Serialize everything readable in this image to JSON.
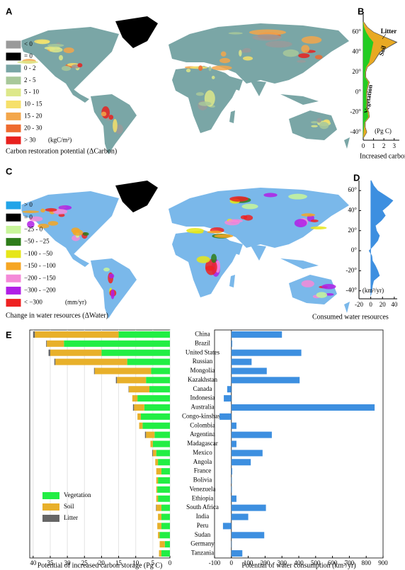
{
  "maps": [
    {
      "label": "A",
      "unit": "(kgC/m²)",
      "caption": "Carbon restoration potential (ΔCarbon)",
      "legend": [
        {
          "label": "< 0",
          "color": "#9a9a9a"
        },
        {
          "label": "= 0",
          "color": "#000000"
        },
        {
          "label": "0 - 2",
          "color": "#7aa6a6"
        },
        {
          "label": "2 - 5",
          "color": "#a8c89a"
        },
        {
          "label": "5 - 10",
          "color": "#dde88a"
        },
        {
          "label": "10 - 15",
          "color": "#f6e06a"
        },
        {
          "label": "15 - 20",
          "color": "#f3a64a"
        },
        {
          "label": "20 - 30",
          "color": "#ee6a2e"
        },
        {
          "label": "> 30",
          "color": "#e8211e"
        }
      ]
    },
    {
      "label": "C",
      "unit": "(mm/yr)",
      "caption": "Change in water resources (ΔWater)",
      "legend": [
        {
          "label": "> 0",
          "color": "#22a4e8"
        },
        {
          "label": "= 0",
          "color": "#000000"
        },
        {
          "label": "−25 - 0",
          "color": "#c8f59a"
        },
        {
          "label": "−50 - −25",
          "color": "#2e7d1a"
        },
        {
          "label": "−100 - −50",
          "color": "#e6e619"
        },
        {
          "label": "−150 - −100",
          "color": "#f6a623"
        },
        {
          "label": "−200 - −150",
          "color": "#f48ad8"
        },
        {
          "label": "−300 - −200",
          "color": "#b01fe6"
        },
        {
          "label": "< −300",
          "color": "#ee2222"
        }
      ]
    }
  ],
  "chart_data": [
    {
      "type": "area",
      "label": "B",
      "orientation": "horizontal",
      "stacked": true,
      "caption": "Increased carbon storage",
      "ylabel": "(Pg C)",
      "x": [
        -45,
        -40,
        -35,
        -30,
        -25,
        -20,
        -15,
        -10,
        -5,
        0,
        5,
        10,
        15,
        20,
        25,
        30,
        35,
        40,
        45,
        50,
        55,
        60,
        65,
        70
      ],
      "xlim": [
        -48,
        78
      ],
      "xticks": [
        {
          "value": -40,
          "label": "-40°"
        },
        {
          "value": -20,
          "label": "-20°"
        },
        {
          "value": 0,
          "label": "0°"
        },
        {
          "value": 20,
          "label": "20°"
        },
        {
          "value": 40,
          "label": "40°"
        },
        {
          "value": 60,
          "label": "60°"
        }
      ],
      "ylim": [
        0,
        3.5
      ],
      "yticks": [
        0,
        1,
        2,
        3
      ],
      "series": [
        {
          "name": "Vegetation",
          "color": "#22cc22",
          "values": [
            0.02,
            0.05,
            0.1,
            0.15,
            0.5,
            0.45,
            0.3,
            0.35,
            0.3,
            0.3,
            0.4,
            0.5,
            0.2,
            0.2,
            0.3,
            0.6,
            0.7,
            0.8,
            0.9,
            1.0,
            0.6,
            0.3,
            0.1,
            0.02
          ]
        },
        {
          "name": "Soil",
          "color": "#e8a923",
          "values": [
            0.05,
            0.3,
            0.1,
            0.05,
            0.1,
            0.1,
            0.05,
            0.05,
            0.05,
            0.05,
            0.05,
            0.1,
            0.05,
            0.05,
            0.1,
            0.4,
            0.6,
            0.8,
            1.5,
            2.2,
            1.5,
            0.7,
            0.3,
            0.05
          ]
        },
        {
          "name": "Litter",
          "color": "#555555",
          "values": [
            0,
            0.01,
            0,
            0,
            0,
            0,
            0,
            0,
            0,
            0,
            0,
            0,
            0,
            0,
            0,
            0.02,
            0.03,
            0.05,
            0.05,
            0.1,
            0.05,
            0.03,
            0.01,
            0
          ]
        }
      ]
    },
    {
      "type": "area",
      "label": "D",
      "orientation": "horizontal",
      "caption": "Consumed water resources",
      "ylabel": "(km³/yr)",
      "x": [
        -45,
        -40,
        -35,
        -30,
        -25,
        -20,
        -15,
        -10,
        -5,
        0,
        5,
        10,
        15,
        20,
        25,
        30,
        35,
        40,
        45,
        50,
        55,
        60,
        65,
        70
      ],
      "xlim": [
        -48,
        70
      ],
      "xticks": [
        {
          "value": -40,
          "label": "-40°"
        },
        {
          "value": -20,
          "label": "-20°"
        },
        {
          "value": 0,
          "label": "0°"
        },
        {
          "value": 20,
          "label": "20°"
        },
        {
          "value": 40,
          "label": "40°"
        },
        {
          "value": 60,
          "label": "60°"
        }
      ],
      "ylim": [
        -20,
        45
      ],
      "yticks": [
        -20,
        0,
        20,
        40
      ],
      "series": [
        {
          "name": "Consumed water",
          "color": "#3d8fe0",
          "values": [
            0,
            2,
            3,
            5,
            15,
            12,
            8,
            3,
            2,
            -3,
            5,
            12,
            15,
            10,
            8,
            18,
            25,
            20,
            30,
            38,
            25,
            12,
            5,
            1
          ]
        }
      ]
    },
    {
      "type": "bar",
      "label": "E",
      "orientation": "horizontal",
      "stacked": true,
      "grid": true,
      "legend": "lower left",
      "ylabel": "Potential of increased carbon storage (Pg C)",
      "categories": [
        "China",
        "Brazil",
        "United States",
        "Russian",
        "Mongolia",
        "Kazakhstan",
        "Canada",
        "Indonesia",
        "Australia",
        "Congo-kinshasa",
        "Colombia",
        "Argentina",
        "Madagascar",
        "Mexico",
        "Angola",
        "France",
        "Bolivia",
        "Venezuela",
        "Ethiopia",
        "South Africa",
        "India",
        "Peru",
        "Sudan",
        "Germany",
        "Tanzania"
      ],
      "ylim": [
        41,
        0
      ],
      "yticks": [
        40,
        35,
        30,
        25,
        20,
        15,
        10,
        5,
        0
      ],
      "series": [
        {
          "name": "Vegetation",
          "color": "#22ee44",
          "values": [
            15,
            31,
            20,
            12.5,
            5.5,
            7,
            6,
            9.5,
            7.5,
            8.5,
            8,
            4.5,
            5,
            4,
            3.5,
            2.5,
            3.5,
            3.7,
            3.5,
            2.5,
            2.5,
            2.5,
            3,
            1.5,
            2.5
          ]
        },
        {
          "name": "Soil",
          "color": "#e8b02a",
          "values": [
            24.5,
            5,
            15,
            21,
            16.5,
            8.5,
            6,
            1.5,
            3,
            1,
            1,
            2.5,
            0.7,
            1,
            0.8,
            1.5,
            0.5,
            0.3,
            0.5,
            1.5,
            1,
            1.2,
            0.5,
            1.5,
            0.7
          ]
        },
        {
          "name": "Litter",
          "color": "#666666",
          "values": [
            0.5,
            0.2,
            0.5,
            0.3,
            0.2,
            0.3,
            0.1,
            0,
            0.3,
            0,
            0,
            0.3,
            0,
            0.2,
            0,
            0,
            0,
            0,
            0,
            0.1,
            0,
            0,
            0,
            0,
            0
          ]
        }
      ]
    },
    {
      "type": "bar",
      "orientation": "horizontal",
      "grid": false,
      "ylabel": "Potential of water consumption (km³/yr)",
      "ylim": [
        -100,
        900
      ],
      "yticks": [
        -100,
        0,
        100,
        200,
        300,
        400,
        500,
        600,
        700,
        800,
        900
      ],
      "color": "#3d8fe0",
      "values": [
        300,
        5,
        415,
        120,
        210,
        405,
        -25,
        -45,
        850,
        -70,
        30,
        240,
        30,
        185,
        115,
        5,
        3,
        3,
        30,
        205,
        100,
        -50,
        195,
        2,
        65
      ]
    }
  ]
}
